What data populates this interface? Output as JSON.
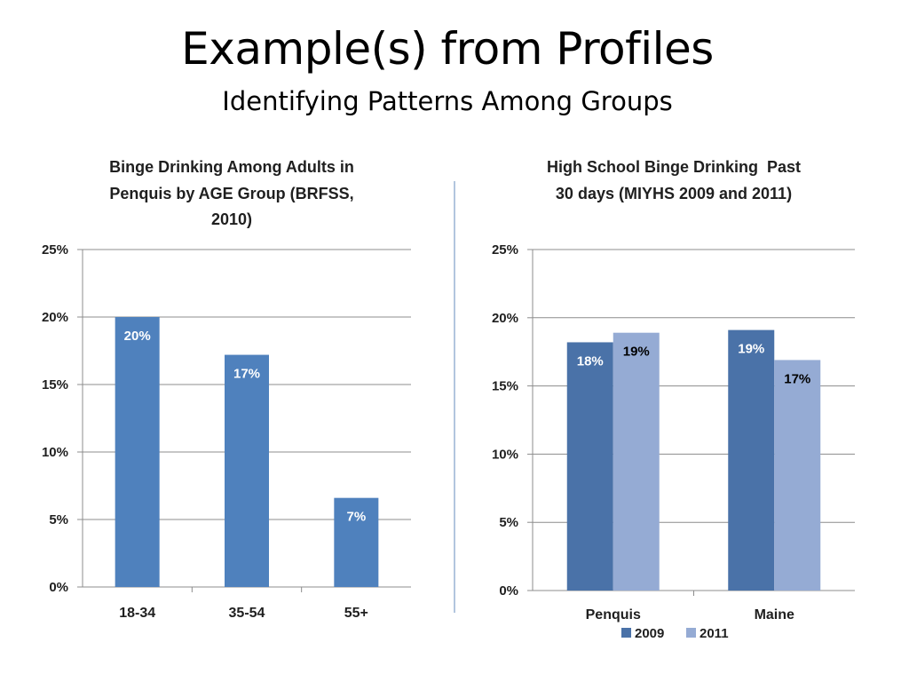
{
  "slide": {
    "title": "Example(s) from Profiles",
    "subtitle": "Identifying Patterns Among Groups"
  },
  "chart_data": [
    {
      "type": "bar",
      "title_lines": [
        "Binge Drinking Among Adults in",
        "Penquis by AGE Group (BRFSS,",
        "2010)"
      ],
      "categories": [
        "18-34",
        "35-54",
        "55+"
      ],
      "values": [
        20,
        17.2,
        6.6
      ],
      "data_labels": [
        "20%",
        "17%",
        "7%"
      ],
      "ylim": [
        0,
        25
      ],
      "yticks": [
        "0%",
        "5%",
        "10%",
        "15%",
        "20%",
        "25%"
      ],
      "grid": true,
      "legend": "none",
      "colors": {
        "bar": "#4f81bd",
        "label": "#ffffff"
      }
    },
    {
      "type": "bar",
      "title_lines": [
        "High School Binge Drinking  Past",
        "30 days (MIYHS 2009 and 2011)"
      ],
      "categories": [
        "Penquis",
        "Maine"
      ],
      "series": [
        {
          "name": "2009",
          "values": [
            18.2,
            19.1
          ],
          "data_labels": [
            "18%",
            "19%"
          ],
          "color": "#4a72a8",
          "label_color": "#ffffff"
        },
        {
          "name": "2011",
          "values": [
            18.9,
            16.9
          ],
          "data_labels": [
            "19%",
            "17%"
          ],
          "color": "#95abd4",
          "label_color": "#000000"
        }
      ],
      "ylim": [
        0,
        25
      ],
      "yticks": [
        "0%",
        "5%",
        "10%",
        "15%",
        "20%",
        "25%"
      ],
      "grid": true,
      "legend": "bottom"
    }
  ]
}
